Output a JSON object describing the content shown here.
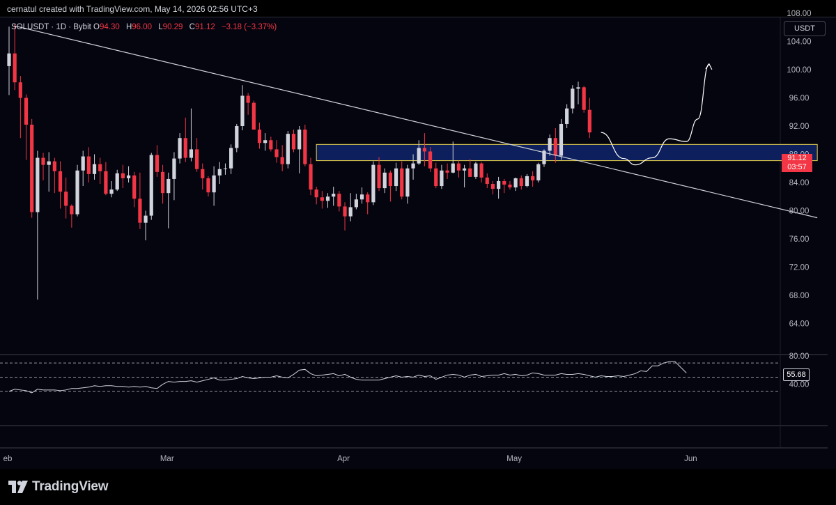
{
  "header": {
    "attribution": "cernatul created with TradingView.com, May 14, 2026 02:56 UTC+3"
  },
  "legend": {
    "symbol": "SOLUSDT · 1D · Bybit",
    "open_label": "O",
    "open": "94.30",
    "high_label": "H",
    "high": "96.00",
    "low_label": "L",
    "low": "90.29",
    "close_label": "C",
    "close": "91.12",
    "change": "−3.18 (−3.37%)"
  },
  "currency_button": "USDT",
  "price_tag": {
    "price": "91.12",
    "countdown": "03:57"
  },
  "rsi_tag": "55.68",
  "brand": "TradingView",
  "colors": {
    "up": "#d1d4dc",
    "down": "#f23645",
    "zone": "#0d1f5c",
    "zone_border": "#e8d24a",
    "background": "#05050f"
  },
  "chart_data": {
    "type": "candlestick",
    "symbol": "SOLUSDT",
    "interval": "1D",
    "exchange": "Bybit",
    "y_ticks": [
      "108.00",
      "104.00",
      "100.00",
      "96.00",
      "92.00",
      "88.00",
      "84.00",
      "80.00",
      "76.00",
      "72.00",
      "68.00",
      "64.00"
    ],
    "x_ticks": [
      {
        "label": "eb",
        "index": 0
      },
      {
        "label": "Mar",
        "index": 28
      },
      {
        "label": "Apr",
        "index": 59
      },
      {
        "label": "May",
        "index": 89
      },
      {
        "label": "Jun",
        "index": 120
      }
    ],
    "candles": [
      [
        100.5,
        106.1,
        96.4,
        102.3
      ],
      [
        102.3,
        106.5,
        97.1,
        98.2
      ],
      [
        98.2,
        99.1,
        90.3,
        96.0
      ],
      [
        96.0,
        96.5,
        87.2,
        92.2
      ],
      [
        92.2,
        93.0,
        79.0,
        79.8
      ],
      [
        79.8,
        88.5,
        67.4,
        87.5
      ],
      [
        87.5,
        88.2,
        84.3,
        86.5
      ],
      [
        86.5,
        88.3,
        82.7,
        87.0
      ],
      [
        87.0,
        87.5,
        82.5,
        85.6
      ],
      [
        85.6,
        87.0,
        80.3,
        82.7
      ],
      [
        82.7,
        84.7,
        78.9,
        80.7
      ],
      [
        80.7,
        80.9,
        77.6,
        79.5
      ],
      [
        79.5,
        86.5,
        79.2,
        85.7
      ],
      [
        85.7,
        88.5,
        83.5,
        87.7
      ],
      [
        87.7,
        89.0,
        84.0,
        85.2
      ],
      [
        85.2,
        88.0,
        84.4,
        86.6
      ],
      [
        86.6,
        87.5,
        83.8,
        85.6
      ],
      [
        85.6,
        86.9,
        82.2,
        82.4
      ],
      [
        82.4,
        84.2,
        81.9,
        83.0
      ],
      [
        83.0,
        85.8,
        82.8,
        85.3
      ],
      [
        85.3,
        86.5,
        83.2,
        84.6
      ],
      [
        84.6,
        86.3,
        84.0,
        85.0
      ],
      [
        85.0,
        85.5,
        80.5,
        81.7
      ],
      [
        81.7,
        85.4,
        77.4,
        78.3
      ],
      [
        78.3,
        80.0,
        75.8,
        79.3
      ],
      [
        79.3,
        88.2,
        78.7,
        87.9
      ],
      [
        87.9,
        89.3,
        84.8,
        85.5
      ],
      [
        85.5,
        86.5,
        81.0,
        82.5
      ],
      [
        82.5,
        85.4,
        77.5,
        84.5
      ],
      [
        84.5,
        88.3,
        81.5,
        87.4
      ],
      [
        87.4,
        91.0,
        86.7,
        90.3
      ],
      [
        90.3,
        93.2,
        86.9,
        87.5
      ],
      [
        87.5,
        94.5,
        87.0,
        88.7
      ],
      [
        88.7,
        90.3,
        85.5,
        85.9
      ],
      [
        85.9,
        86.7,
        83.0,
        84.6
      ],
      [
        84.6,
        84.9,
        82.0,
        82.6
      ],
      [
        82.6,
        86.3,
        80.7,
        85.0
      ],
      [
        85.0,
        86.9,
        83.8,
        85.9
      ],
      [
        85.9,
        86.7,
        85.1,
        86.0
      ],
      [
        86.0,
        89.4,
        85.2,
        88.9
      ],
      [
        88.9,
        92.3,
        88.3,
        92.0
      ],
      [
        92.0,
        97.8,
        91.4,
        96.3
      ],
      [
        96.3,
        96.7,
        93.6,
        95.3
      ],
      [
        95.3,
        95.6,
        91.6,
        91.5
      ],
      [
        91.5,
        92.5,
        88.8,
        89.6
      ],
      [
        89.6,
        91.0,
        88.5,
        90.0
      ],
      [
        90.0,
        90.5,
        88.4,
        88.7
      ],
      [
        88.7,
        90.0,
        86.8,
        87.6
      ],
      [
        87.6,
        89.3,
        85.6,
        86.6
      ],
      [
        86.6,
        91.3,
        86.0,
        90.9
      ],
      [
        90.9,
        91.5,
        88.3,
        88.7
      ],
      [
        88.7,
        92.0,
        85.3,
        91.5
      ],
      [
        91.5,
        92.2,
        86.3,
        86.6
      ],
      [
        86.6,
        87.5,
        82.2,
        83.0
      ],
      [
        83.0,
        83.4,
        80.9,
        81.9
      ],
      [
        81.9,
        82.8,
        80.3,
        81.4
      ],
      [
        81.4,
        82.5,
        80.4,
        82.0
      ],
      [
        82.0,
        83.4,
        80.7,
        82.4
      ],
      [
        82.4,
        82.8,
        79.9,
        80.6
      ],
      [
        80.6,
        81.2,
        77.2,
        79.2
      ],
      [
        79.2,
        82.5,
        78.5,
        80.5
      ],
      [
        80.5,
        82.4,
        80.2,
        81.6
      ],
      [
        81.6,
        83.3,
        81.0,
        82.3
      ],
      [
        82.3,
        82.6,
        79.5,
        81.2
      ],
      [
        81.2,
        87.0,
        80.8,
        86.5
      ],
      [
        86.5,
        87.6,
        82.8,
        83.2
      ],
      [
        83.2,
        86.0,
        82.5,
        85.4
      ],
      [
        85.4,
        85.7,
        81.3,
        83.5
      ],
      [
        83.5,
        86.8,
        82.8,
        86.0
      ],
      [
        86.0,
        87.0,
        81.6,
        82.0
      ],
      [
        82.0,
        86.5,
        81.0,
        86.0
      ],
      [
        86.0,
        88.0,
        84.4,
        86.7
      ],
      [
        86.7,
        90.0,
        86.5,
        88.9
      ],
      [
        88.9,
        91.0,
        86.3,
        88.4
      ],
      [
        88.4,
        89.0,
        85.5,
        86.0
      ],
      [
        86.0,
        86.8,
        83.2,
        83.5
      ],
      [
        83.5,
        86.5,
        83.1,
        85.7
      ],
      [
        85.7,
        86.7,
        84.5,
        85.4
      ],
      [
        85.4,
        89.8,
        85.3,
        86.7
      ],
      [
        86.7,
        87.1,
        84.7,
        85.7
      ],
      [
        85.7,
        86.5,
        83.3,
        86.0
      ],
      [
        86.0,
        87.3,
        84.8,
        84.8
      ],
      [
        84.8,
        86.9,
        84.5,
        86.7
      ],
      [
        86.7,
        86.9,
        84.0,
        84.7
      ],
      [
        84.7,
        85.3,
        83.2,
        83.8
      ],
      [
        83.8,
        84.2,
        82.3,
        83.1
      ],
      [
        83.1,
        84.8,
        81.7,
        84.2
      ],
      [
        84.2,
        84.5,
        82.5,
        83.7
      ],
      [
        83.7,
        84.2,
        83.0,
        83.3
      ],
      [
        83.3,
        84.7,
        82.8,
        84.6
      ],
      [
        84.6,
        85.0,
        83.0,
        83.5
      ],
      [
        83.5,
        85.2,
        83.3,
        84.9
      ],
      [
        84.9,
        85.6,
        83.4,
        84.3
      ],
      [
        84.3,
        86.8,
        84.0,
        86.6
      ],
      [
        86.6,
        88.7,
        86.2,
        88.5
      ],
      [
        88.5,
        90.8,
        87.8,
        90.3
      ],
      [
        90.3,
        91.7,
        86.8,
        87.8
      ],
      [
        87.8,
        93.0,
        87.2,
        92.3
      ],
      [
        92.3,
        95.1,
        91.7,
        94.5
      ],
      [
        94.5,
        97.8,
        93.8,
        97.3
      ],
      [
        97.3,
        98.3,
        95.1,
        97.5
      ],
      [
        97.5,
        97.7,
        93.9,
        94.3
      ],
      [
        94.3,
        96.0,
        90.3,
        91.1
      ]
    ],
    "trendline": {
      "from": {
        "index": 1,
        "price": 106.2
      },
      "to": {
        "index": 142,
        "price": 79.0
      }
    },
    "zone": {
      "from_index": 54,
      "to_index": 142,
      "top": 89.4,
      "bottom": 87.1
    },
    "projection": [
      {
        "index": 104,
        "price": 91.1
      },
      {
        "index": 108,
        "price": 87.4
      },
      {
        "index": 110,
        "price": 86.5
      },
      {
        "index": 113,
        "price": 87.5
      },
      {
        "index": 116,
        "price": 90.2
      },
      {
        "index": 119,
        "price": 89.8
      },
      {
        "index": 121,
        "price": 93.0
      },
      {
        "index": 123,
        "price": 100.8
      }
    ],
    "rsi": {
      "last": 55.68,
      "y_ticks": [
        "80.00",
        "40.00"
      ],
      "levels": [
        70,
        50,
        30
      ],
      "values": [
        30,
        33,
        32,
        31,
        28,
        33,
        32,
        32,
        32,
        31,
        32,
        34,
        34,
        35,
        36,
        38,
        37,
        38,
        38,
        37,
        37,
        36,
        37,
        36,
        37,
        35,
        34,
        40,
        44,
        43,
        44,
        44,
        45,
        43,
        45,
        47,
        49,
        46,
        46,
        47,
        48,
        51,
        49,
        48,
        49,
        50,
        50,
        52,
        50,
        49,
        54,
        60,
        61,
        55,
        52,
        53,
        54,
        55,
        52,
        54,
        50,
        47,
        46,
        46,
        46,
        46,
        48,
        50,
        52,
        50,
        51,
        50,
        53,
        51,
        52,
        47,
        50,
        53,
        54,
        53,
        50,
        53,
        54,
        51,
        52,
        53,
        53,
        55,
        53,
        54,
        52,
        53,
        56,
        55,
        53,
        53,
        53,
        55,
        54,
        54,
        55,
        54,
        52,
        50,
        52,
        51,
        51,
        52,
        51,
        53,
        55,
        59,
        58,
        66,
        66,
        70,
        72,
        72,
        64,
        56
      ]
    }
  }
}
